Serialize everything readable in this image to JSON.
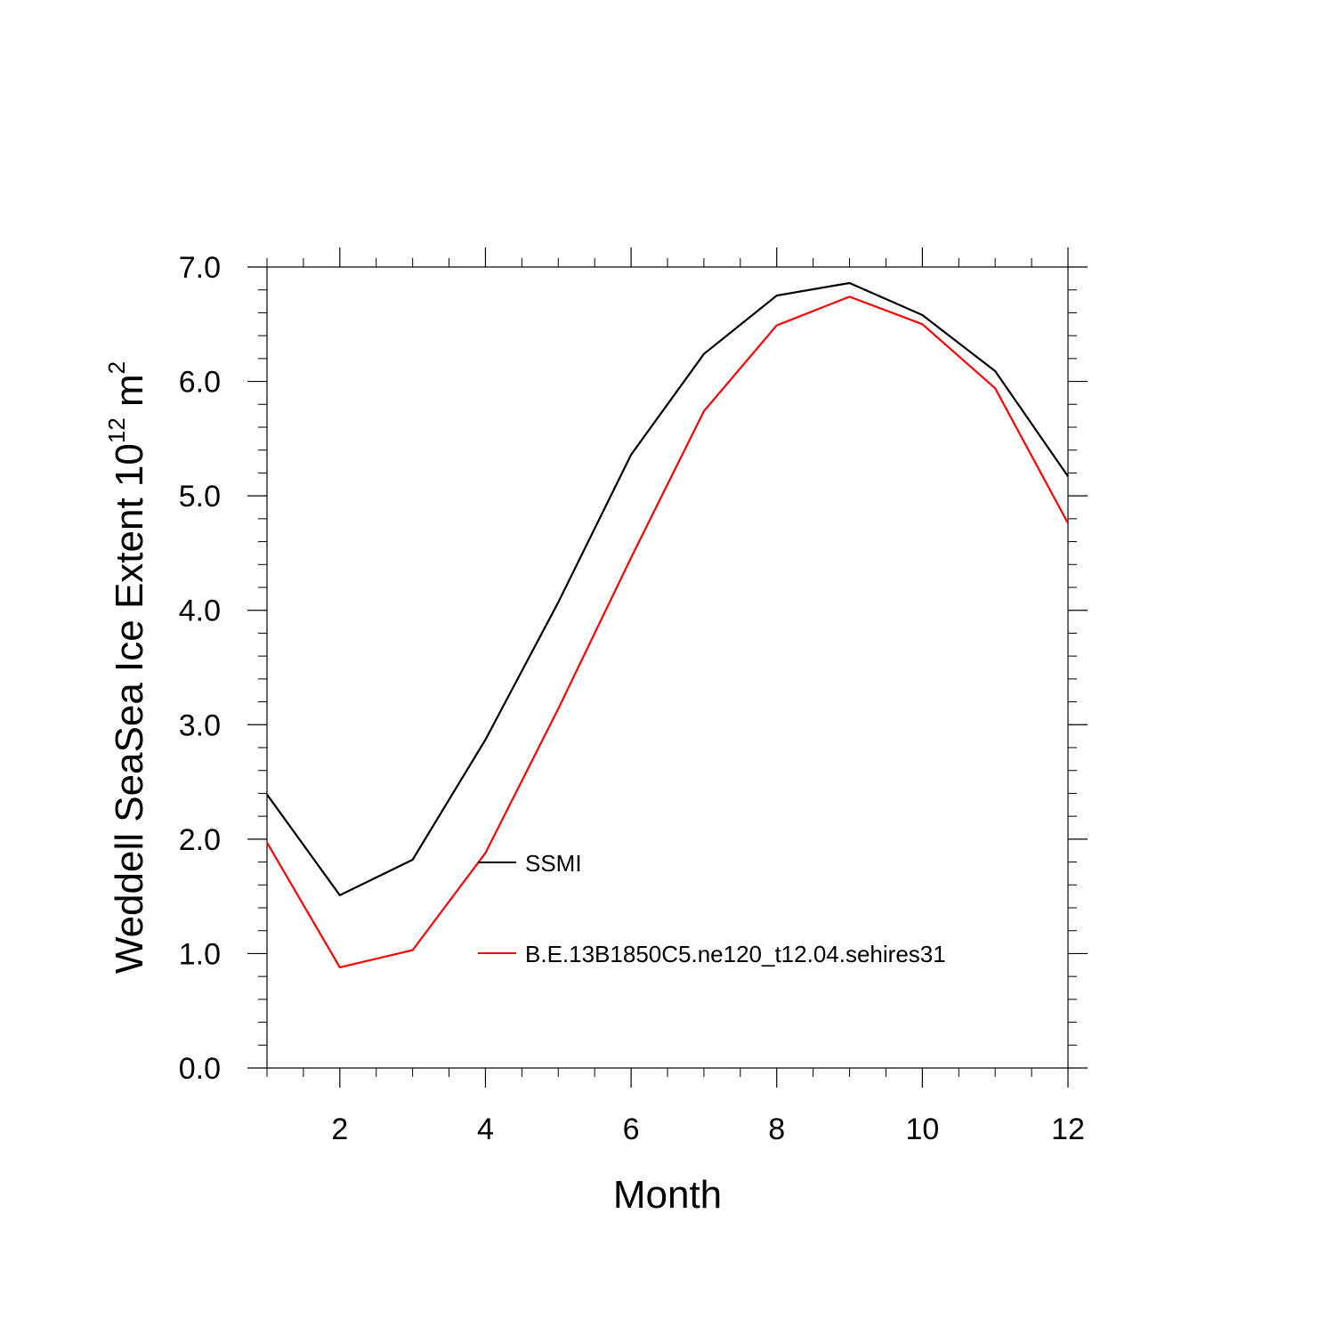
{
  "chart_data": {
    "type": "line",
    "title": "",
    "xlabel": "Month",
    "ylabel": {
      "main": "Weddell SeaSea Ice Extent 10",
      "superscript": "12",
      "unit": " m",
      "unit_superscript": "2"
    },
    "xlim": [
      1,
      12
    ],
    "ylim": [
      0.0,
      7.0
    ],
    "x_ticks": [
      2,
      4,
      6,
      8,
      10,
      12
    ],
    "x_tick_labels": [
      "2",
      "4",
      "6",
      "8",
      "10",
      "12"
    ],
    "y_ticks": [
      0.0,
      1.0,
      2.0,
      3.0,
      4.0,
      5.0,
      6.0,
      7.0
    ],
    "y_tick_labels": [
      "0.0",
      "1.0",
      "2.0",
      "3.0",
      "4.0",
      "5.0",
      "6.0",
      "7.0"
    ],
    "grid": false,
    "legend_placement": "center",
    "x": [
      1,
      2,
      3,
      4,
      5,
      6,
      7,
      8,
      9,
      10,
      11,
      12
    ],
    "series": [
      {
        "name": "SSMI",
        "color": "#000000",
        "values": [
          2.39,
          1.51,
          1.82,
          2.87,
          4.07,
          5.36,
          6.24,
          6.75,
          6.86,
          6.58,
          6.09,
          5.17
        ]
      },
      {
        "name": "B.E.13B1850C5.ne120_t12.04.sehires31",
        "color": "#ff0000",
        "values": [
          1.97,
          0.88,
          1.03,
          1.88,
          3.14,
          4.46,
          5.74,
          6.49,
          6.74,
          6.5,
          5.94,
          4.76
        ]
      }
    ]
  }
}
